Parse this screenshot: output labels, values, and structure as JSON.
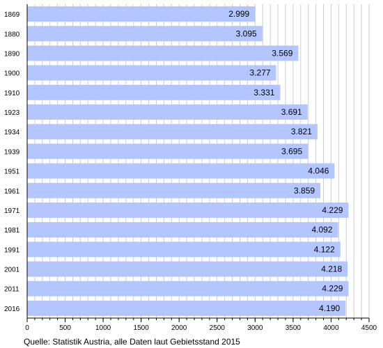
{
  "chart_data": {
    "type": "bar",
    "orientation": "horizontal",
    "categories": [
      "1869",
      "1880",
      "1890",
      "1900",
      "1910",
      "1923",
      "1934",
      "1939",
      "1951",
      "1961",
      "1971",
      "1981",
      "1991",
      "2001",
      "2011",
      "2016"
    ],
    "values": [
      2999,
      3095,
      3569,
      3277,
      3331,
      3691,
      3821,
      3695,
      4046,
      3859,
      4229,
      4092,
      4122,
      4218,
      4229,
      4190
    ],
    "value_labels": [
      "2.999",
      "3.095",
      "3.569",
      "3.277",
      "3.331",
      "3.691",
      "3.821",
      "3.695",
      "4.046",
      "3.859",
      "4.229",
      "4.092",
      "4.122",
      "4.218",
      "4.229",
      "4.190"
    ],
    "x_ticks": [
      0,
      500,
      1000,
      1500,
      2000,
      2500,
      3000,
      3500,
      4000,
      4500
    ],
    "xlim": [
      0,
      4500
    ],
    "grid": "vertical",
    "bar_color": "#b3c6ff",
    "grid_color": "#cccccc",
    "source": "Quelle: Statistik Austria, alle Daten laut Gebietsstand 2015"
  }
}
